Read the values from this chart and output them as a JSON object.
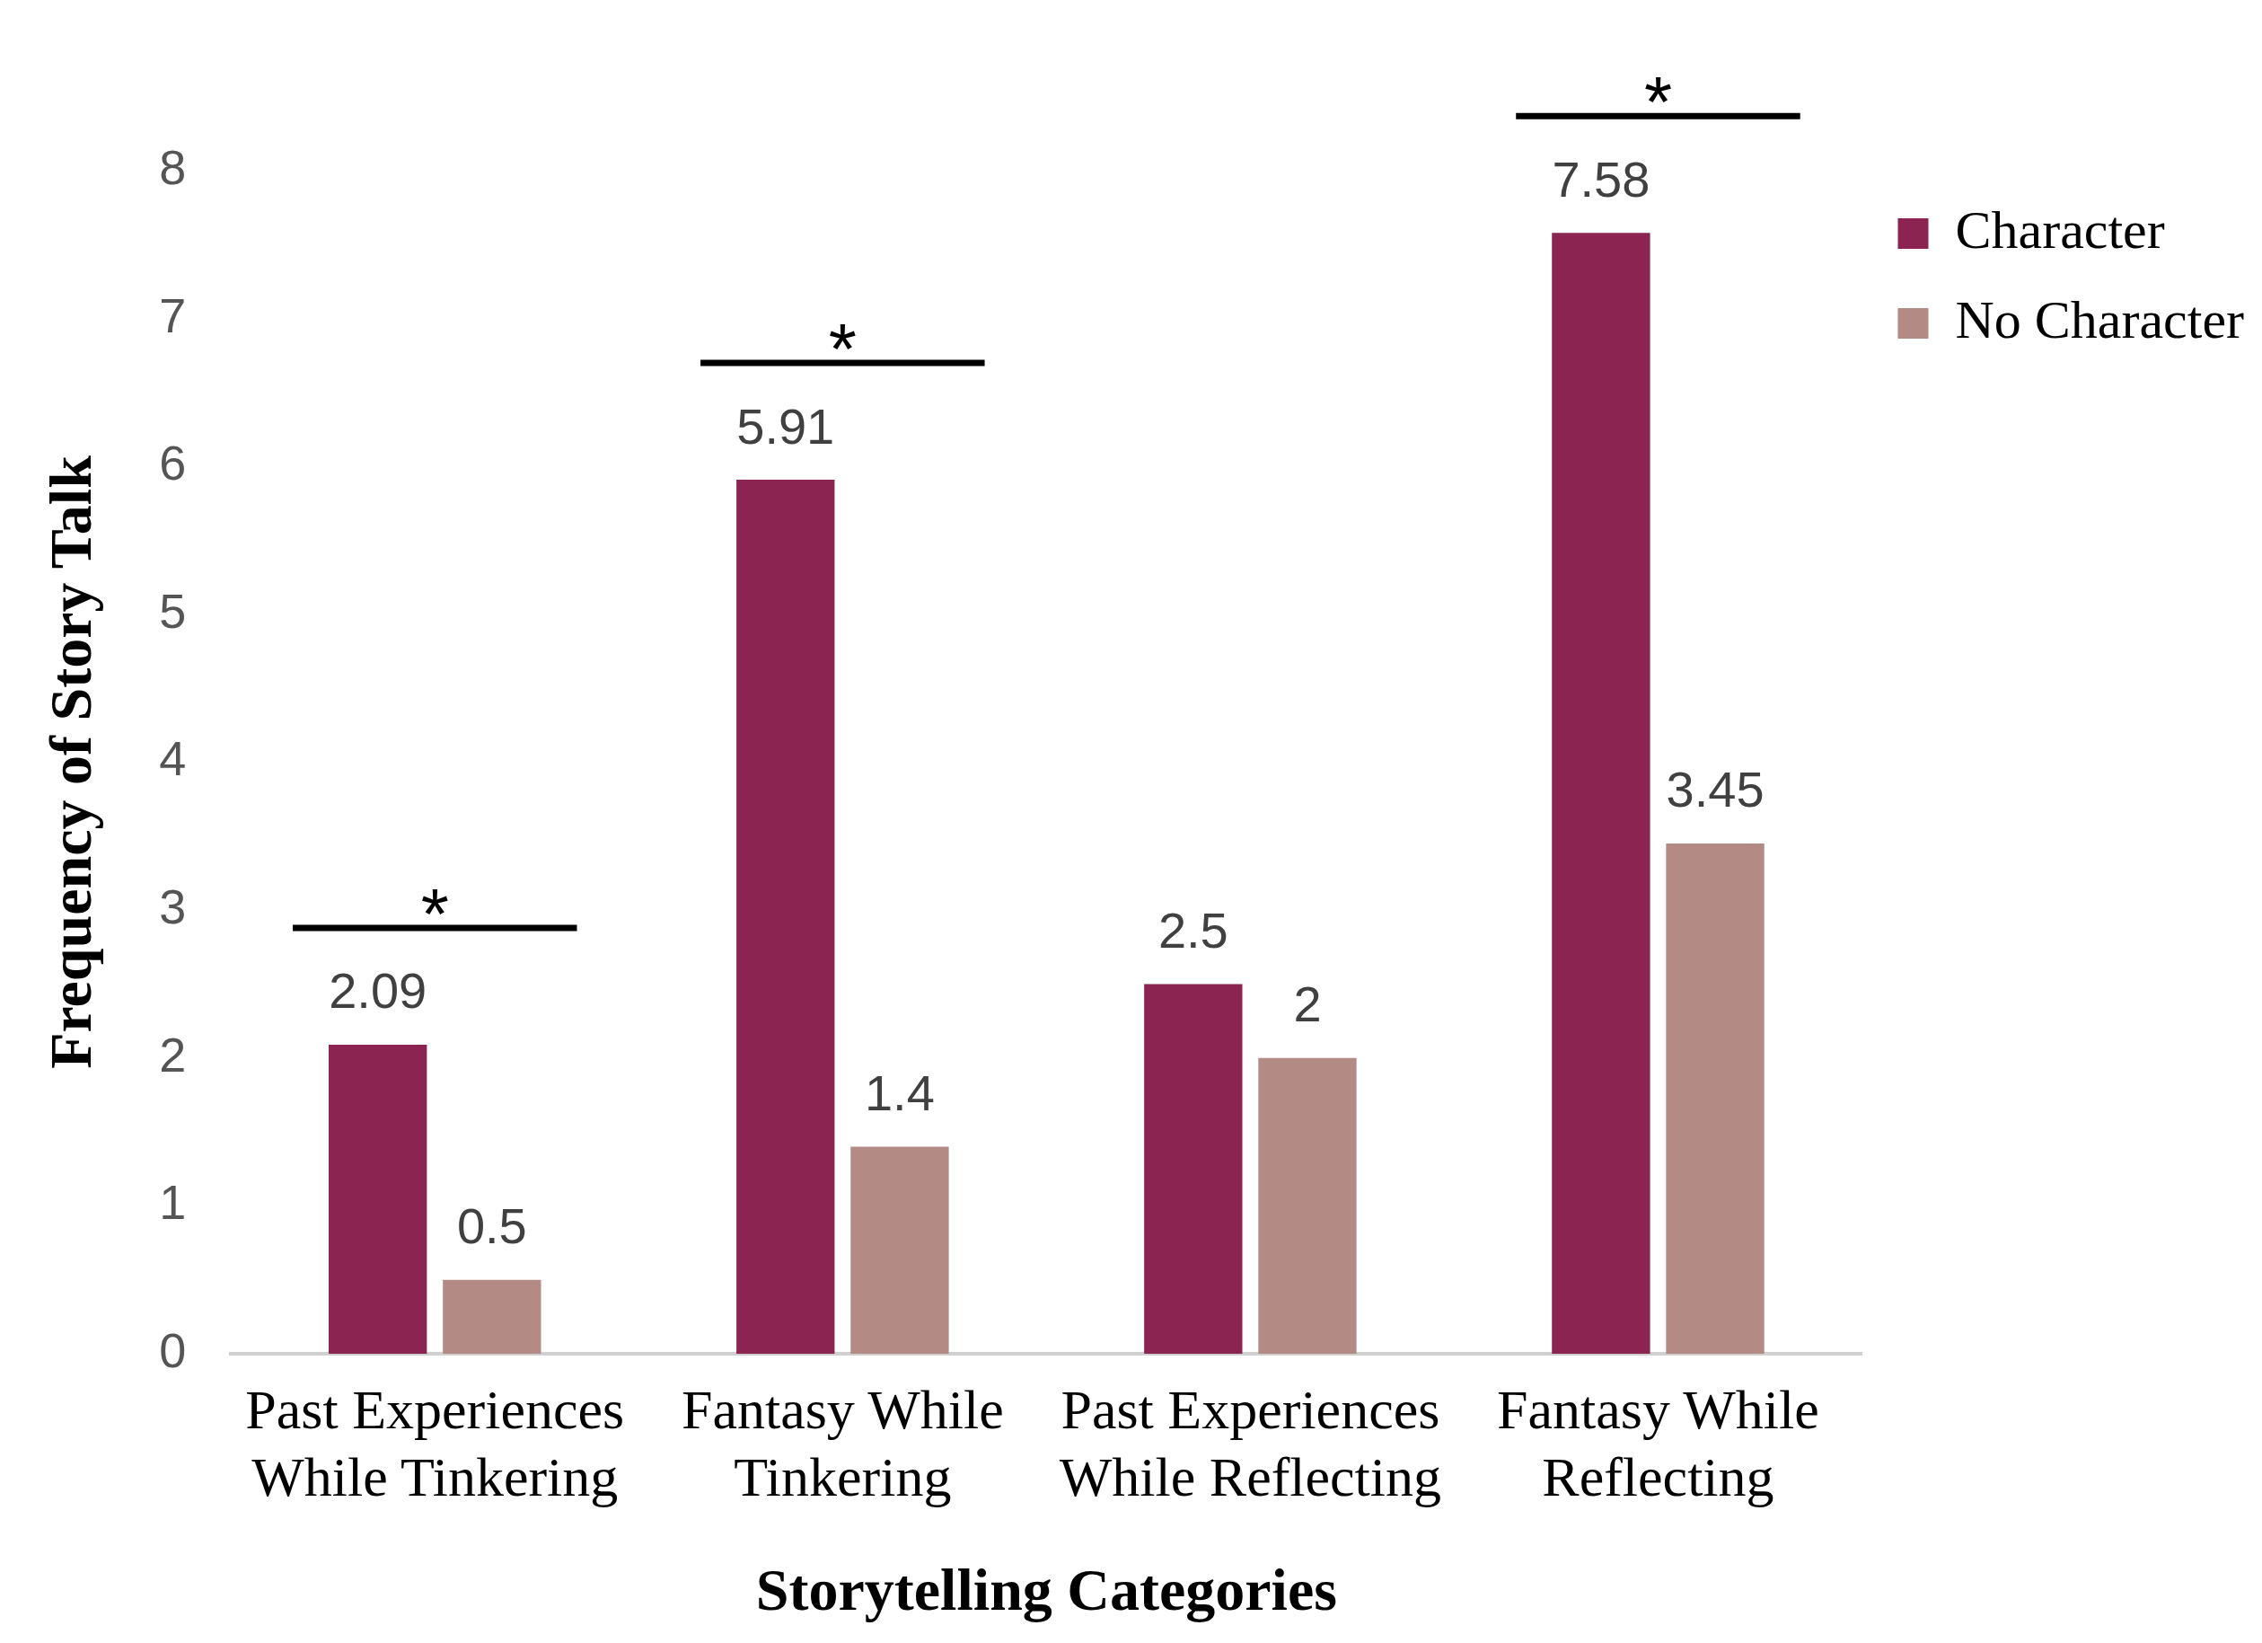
{
  "chart_data": {
    "type": "bar",
    "xlabel": "Storytelling Categories",
    "ylabel": "Frequency of Story Talk",
    "categories": [
      "Past Experiences While Tinkering",
      "Fantasy While Tinkering",
      "Past Experiences While Reflecting",
      "Fantasy While Reflecting"
    ],
    "series": [
      {
        "name": "Character",
        "color": "#8b2450",
        "values": [
          2.09,
          5.91,
          2.5,
          7.58
        ]
      },
      {
        "name": "No Character",
        "color": "#b38a84",
        "values": [
          0.5,
          1.4,
          2,
          3.45
        ]
      }
    ],
    "ylim": [
      0,
      8
    ],
    "yticks": [
      0,
      1,
      2,
      3,
      4,
      5,
      6,
      7,
      8
    ],
    "grid": false,
    "legend": "top right",
    "data_labels": true,
    "annotations": [
      "*",
      "*",
      "*"
    ]
  }
}
